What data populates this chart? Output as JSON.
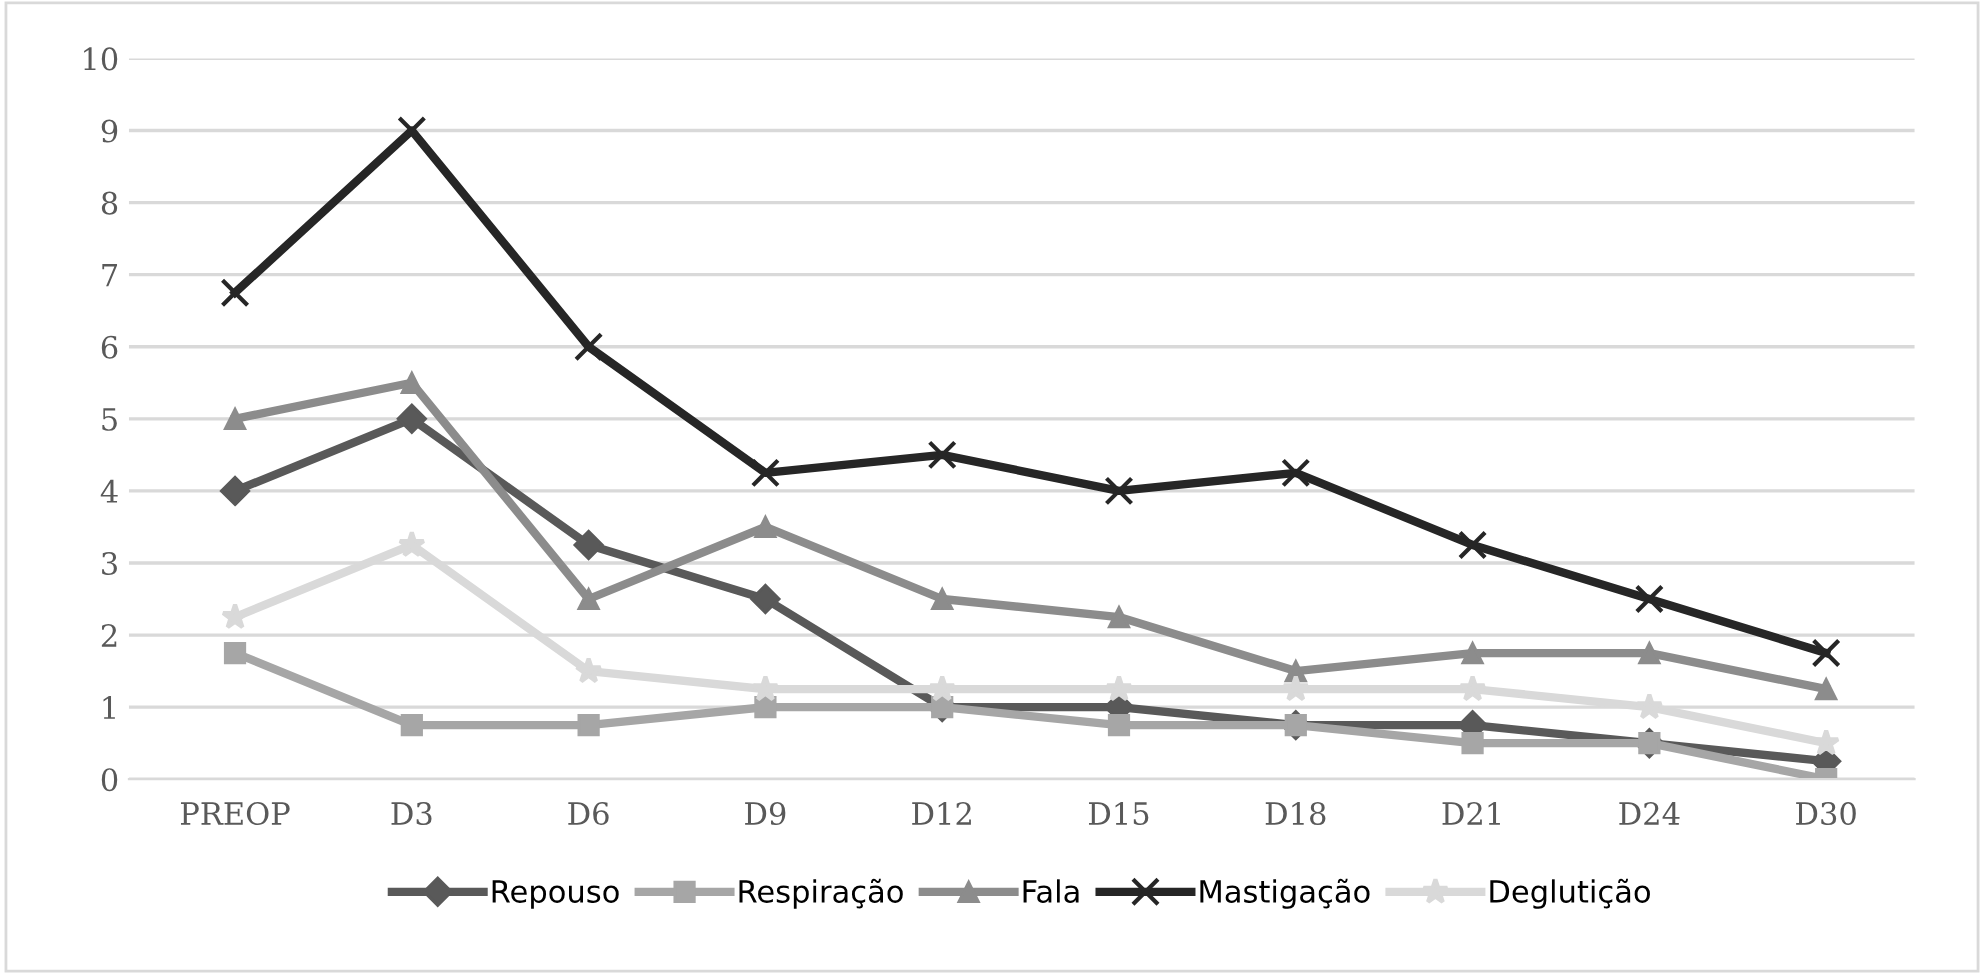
{
  "chart_data": {
    "type": "line",
    "categories": [
      "PREOP",
      "D3",
      "D6",
      "D9",
      "D12",
      "D15",
      "D18",
      "D21",
      "D24",
      "D30"
    ],
    "series": [
      {
        "name": "Repouso",
        "color": "#595959",
        "marker": "diamond",
        "values": [
          4,
          5,
          3.25,
          2.5,
          1,
          1,
          0.75,
          0.75,
          0.5,
          0.25
        ]
      },
      {
        "name": "Respiração",
        "color": "#a6a6a6",
        "marker": "square",
        "values": [
          1.75,
          0.75,
          0.75,
          1,
          1,
          0.75,
          0.75,
          0.5,
          0.5,
          0
        ]
      },
      {
        "name": "Fala",
        "color": "#8c8c8c",
        "marker": "triangle",
        "values": [
          5,
          5.5,
          2.5,
          3.5,
          2.5,
          2.25,
          1.5,
          1.75,
          1.75,
          1.25
        ]
      },
      {
        "name": "Mastigação",
        "color": "#262626",
        "marker": "cross",
        "values": [
          6.75,
          9,
          6,
          4.25,
          4.5,
          4,
          4.25,
          3.25,
          2.5,
          1.75
        ]
      },
      {
        "name": "Deglutição",
        "color": "#d9d9d9",
        "marker": "star",
        "values": [
          2.25,
          3.25,
          1.5,
          1.25,
          1.25,
          1.25,
          1.25,
          1.25,
          1,
          0.5
        ]
      }
    ],
    "ylim": [
      0,
      10
    ],
    "yticks": [
      0,
      1,
      2,
      3,
      4,
      5,
      6,
      7,
      8,
      9,
      10
    ],
    "grid": "y",
    "legend": "bottom",
    "line_style": "solid"
  }
}
